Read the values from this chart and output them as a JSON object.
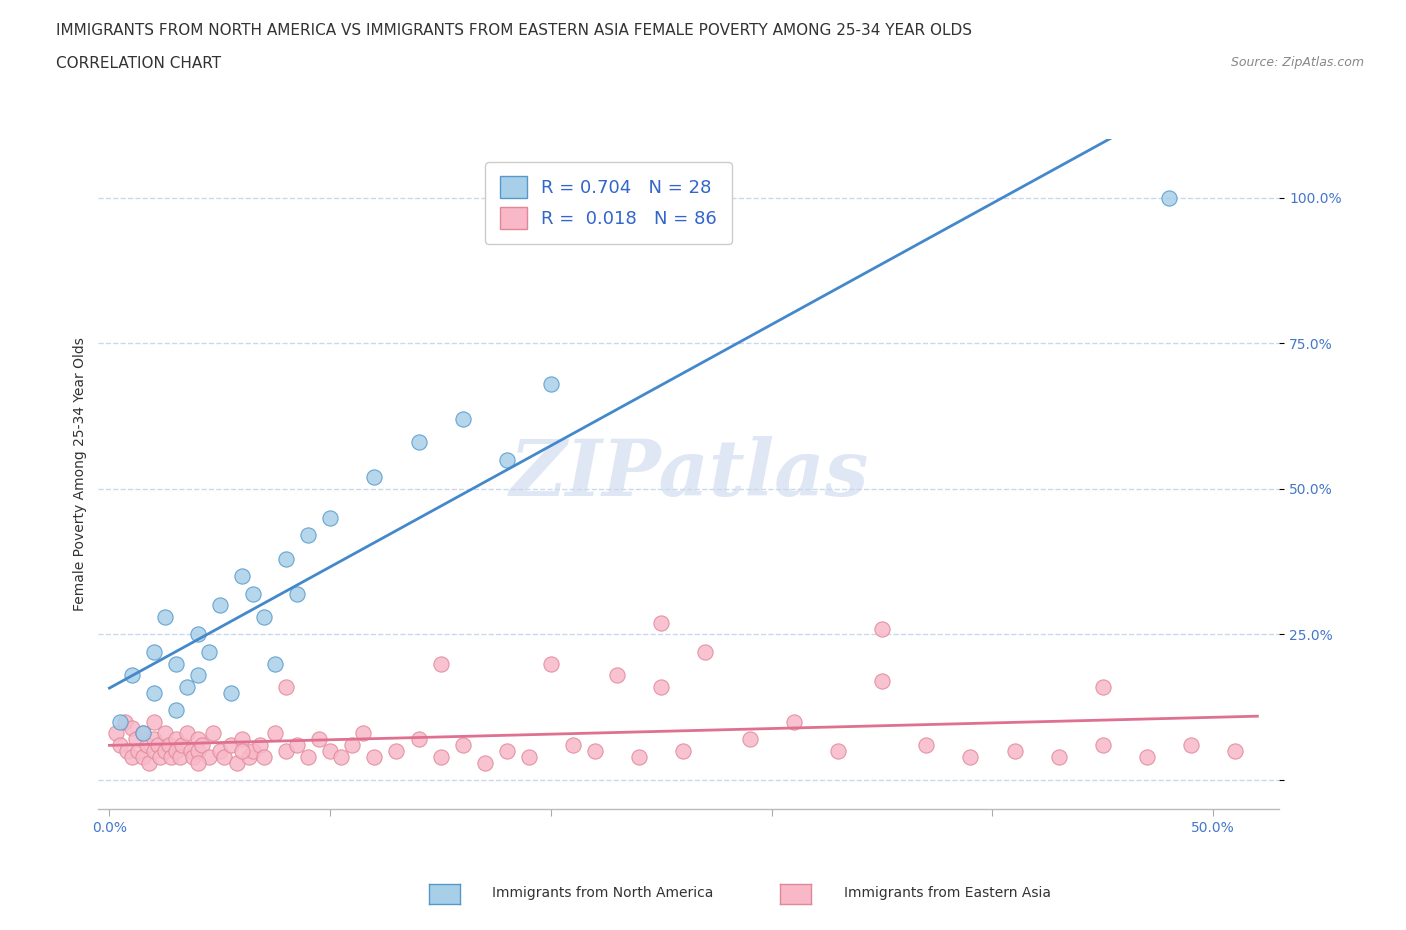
{
  "title_line1": "IMMIGRANTS FROM NORTH AMERICA VS IMMIGRANTS FROM EASTERN ASIA FEMALE POVERTY AMONG 25-34 YEAR OLDS",
  "title_line2": "CORRELATION CHART",
  "source_text": "Source: ZipAtlas.com",
  "ylabel": "Female Poverty Among 25-34 Year Olds",
  "xlim": [
    -0.005,
    0.53
  ],
  "ylim": [
    -0.05,
    1.1
  ],
  "xticks": [
    0.0,
    0.1,
    0.2,
    0.3,
    0.4,
    0.5
  ],
  "xticklabels": [
    "0.0%",
    "",
    "",
    "",
    "",
    "50.0%"
  ],
  "yticks": [
    0.0,
    0.25,
    0.5,
    0.75,
    1.0
  ],
  "yticklabels": [
    "",
    "25.0%",
    "50.0%",
    "75.0%",
    "100.0%"
  ],
  "legend_r1": "R = 0.704   N = 28",
  "legend_r2": "R =  0.018   N = 86",
  "blue_color": "#a8cfe8",
  "pink_color": "#f8b8c8",
  "blue_edge_color": "#5599cc",
  "pink_edge_color": "#e08898",
  "blue_line_color": "#4488cc",
  "pink_line_color": "#e07090",
  "watermark": "ZIPatlas",
  "blue_scatter_x": [
    0.005,
    0.01,
    0.015,
    0.02,
    0.02,
    0.025,
    0.03,
    0.03,
    0.035,
    0.04,
    0.04,
    0.045,
    0.05,
    0.055,
    0.06,
    0.065,
    0.07,
    0.075,
    0.08,
    0.085,
    0.09,
    0.1,
    0.12,
    0.14,
    0.16,
    0.18,
    0.2,
    0.48
  ],
  "blue_scatter_y": [
    0.1,
    0.18,
    0.08,
    0.22,
    0.15,
    0.28,
    0.2,
    0.12,
    0.16,
    0.25,
    0.18,
    0.22,
    0.3,
    0.15,
    0.35,
    0.32,
    0.28,
    0.2,
    0.38,
    0.32,
    0.42,
    0.45,
    0.52,
    0.58,
    0.62,
    0.55,
    0.68,
    1.0
  ],
  "pink_scatter_x": [
    0.003,
    0.005,
    0.007,
    0.008,
    0.01,
    0.01,
    0.012,
    0.013,
    0.015,
    0.015,
    0.017,
    0.018,
    0.02,
    0.02,
    0.022,
    0.023,
    0.025,
    0.025,
    0.027,
    0.028,
    0.03,
    0.03,
    0.032,
    0.033,
    0.035,
    0.037,
    0.038,
    0.04,
    0.04,
    0.042,
    0.045,
    0.047,
    0.05,
    0.052,
    0.055,
    0.058,
    0.06,
    0.063,
    0.065,
    0.068,
    0.07,
    0.075,
    0.08,
    0.085,
    0.09,
    0.095,
    0.1,
    0.105,
    0.11,
    0.115,
    0.12,
    0.13,
    0.14,
    0.15,
    0.16,
    0.17,
    0.18,
    0.19,
    0.2,
    0.21,
    0.22,
    0.23,
    0.24,
    0.25,
    0.26,
    0.27,
    0.29,
    0.31,
    0.33,
    0.35,
    0.37,
    0.39,
    0.41,
    0.43,
    0.45,
    0.47,
    0.49,
    0.51,
    0.02,
    0.04,
    0.06,
    0.08,
    0.15,
    0.25,
    0.35,
    0.45
  ],
  "pink_scatter_y": [
    0.08,
    0.06,
    0.1,
    0.05,
    0.09,
    0.04,
    0.07,
    0.05,
    0.08,
    0.04,
    0.06,
    0.03,
    0.07,
    0.05,
    0.06,
    0.04,
    0.08,
    0.05,
    0.06,
    0.04,
    0.07,
    0.05,
    0.04,
    0.06,
    0.08,
    0.05,
    0.04,
    0.07,
    0.05,
    0.06,
    0.04,
    0.08,
    0.05,
    0.04,
    0.06,
    0.03,
    0.07,
    0.04,
    0.05,
    0.06,
    0.04,
    0.08,
    0.05,
    0.06,
    0.04,
    0.07,
    0.05,
    0.04,
    0.06,
    0.08,
    0.04,
    0.05,
    0.07,
    0.04,
    0.06,
    0.03,
    0.05,
    0.04,
    0.2,
    0.06,
    0.05,
    0.18,
    0.04,
    0.16,
    0.05,
    0.22,
    0.07,
    0.1,
    0.05,
    0.26,
    0.06,
    0.04,
    0.05,
    0.04,
    0.06,
    0.04,
    0.06,
    0.05,
    0.1,
    0.03,
    0.05,
    0.16,
    0.2,
    0.27,
    0.17,
    0.16
  ],
  "background_color": "#ffffff",
  "grid_color": "#c8d8ee",
  "title_fontsize": 11,
  "subtitle_fontsize": 11,
  "axis_label_fontsize": 10,
  "tick_fontsize": 10,
  "marker_size": 120
}
